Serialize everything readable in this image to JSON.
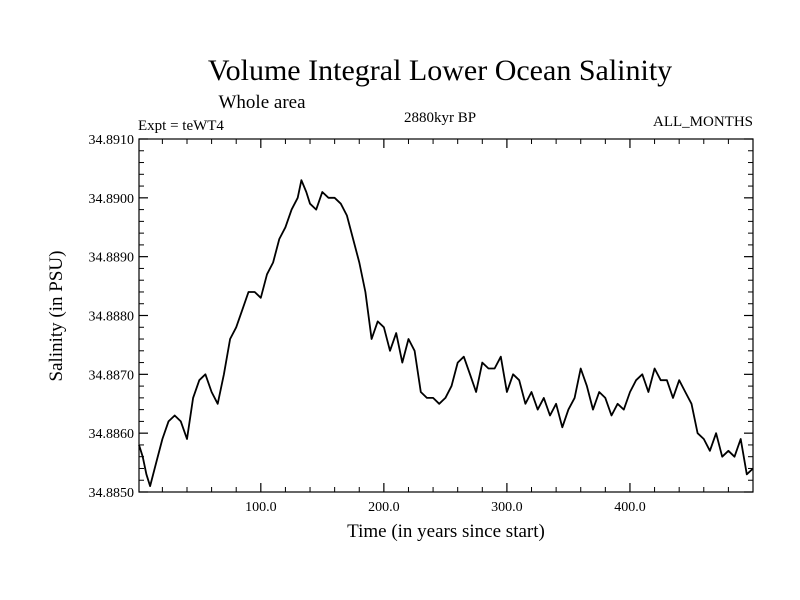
{
  "chart_data": {
    "type": "line",
    "title": "Volume Integral Lower Ocean Salinity",
    "subtitle": "Whole area",
    "experiment_label": "Expt = teWT4",
    "period_label": "2880kyr BP",
    "months_label": "ALL_MONTHS",
    "xlabel": "Time (in years since start)",
    "ylabel": "Salinity (in PSU)",
    "xlim": [
      1,
      500
    ],
    "ylim": [
      34.885,
      34.891
    ],
    "x_ticks": [
      100,
      200,
      300,
      400
    ],
    "x_tick_labels": [
      "100.0",
      "200.0",
      "300.0",
      "400.0"
    ],
    "y_ticks": [
      34.885,
      34.886,
      34.887,
      34.888,
      34.889,
      34.89,
      34.891
    ],
    "y_tick_labels": [
      "34.8850",
      "34.8860",
      "34.8870",
      "34.8880",
      "34.8890",
      "34.8900",
      "34.8910"
    ],
    "grid": false,
    "series": [
      {
        "name": "Salinity",
        "color": "#000000",
        "x": [
          1,
          4,
          7,
          10,
          15,
          20,
          25,
          30,
          35,
          40,
          45,
          50,
          55,
          60,
          65,
          70,
          75,
          80,
          85,
          90,
          95,
          100,
          105,
          110,
          115,
          120,
          125,
          130,
          133,
          137,
          140,
          145,
          150,
          155,
          160,
          165,
          170,
          175,
          180,
          185,
          190,
          195,
          200,
          205,
          210,
          215,
          220,
          225,
          230,
          235,
          240,
          245,
          250,
          255,
          260,
          265,
          270,
          275,
          280,
          285,
          290,
          295,
          300,
          305,
          310,
          315,
          320,
          325,
          330,
          335,
          340,
          345,
          350,
          355,
          360,
          365,
          370,
          375,
          380,
          385,
          390,
          395,
          400,
          405,
          410,
          415,
          420,
          425,
          430,
          435,
          440,
          445,
          450,
          455,
          460,
          465,
          470,
          475,
          480,
          485,
          490,
          495,
          500
        ],
        "values": [
          34.8858,
          34.8856,
          34.8853,
          34.8851,
          34.8855,
          34.8859,
          34.8862,
          34.8863,
          34.8862,
          34.8859,
          34.8866,
          34.8869,
          34.887,
          34.8867,
          34.8865,
          34.887,
          34.8876,
          34.8878,
          34.8881,
          34.8884,
          34.8884,
          34.8883,
          34.8887,
          34.8889,
          34.8893,
          34.8895,
          34.8898,
          34.89,
          34.8903,
          34.8901,
          34.8899,
          34.8898,
          34.8901,
          34.89,
          34.89,
          34.8899,
          34.8897,
          34.8893,
          34.8889,
          34.8884,
          34.8876,
          34.8879,
          34.8878,
          34.8874,
          34.8877,
          34.8872,
          34.8876,
          34.8874,
          34.8867,
          34.8866,
          34.8866,
          34.8865,
          34.8866,
          34.8868,
          34.8872,
          34.8873,
          34.887,
          34.8867,
          34.8872,
          34.8871,
          34.8871,
          34.8873,
          34.8867,
          34.887,
          34.8869,
          34.8865,
          34.8867,
          34.8864,
          34.8866,
          34.8863,
          34.8865,
          34.8861,
          34.8864,
          34.8866,
          34.8871,
          34.8868,
          34.8864,
          34.8867,
          34.8866,
          34.8863,
          34.8865,
          34.8864,
          34.8867,
          34.8869,
          34.887,
          34.8867,
          34.8871,
          34.8869,
          34.8869,
          34.8866,
          34.8869,
          34.8867,
          34.8865,
          34.886,
          34.8859,
          34.8857,
          34.886,
          34.8856,
          34.8857,
          34.8856,
          34.8859,
          34.8853,
          34.8854
        ]
      }
    ]
  }
}
